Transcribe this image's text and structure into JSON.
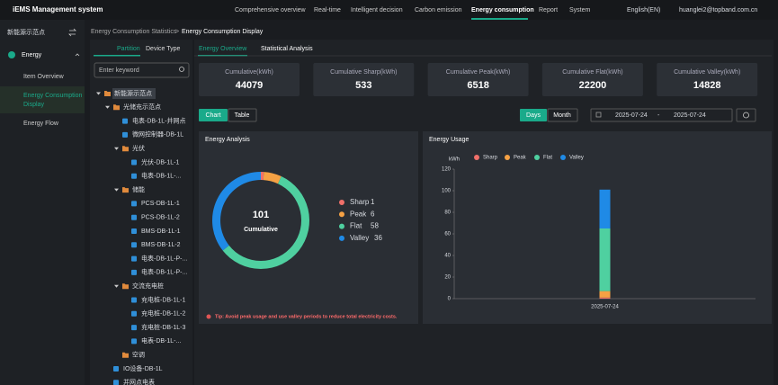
{
  "header": {
    "title": "iEMS Management system",
    "nav": [
      "Comprehensive overview",
      "Real-time",
      "Intelligent decision",
      "Carbon emission",
      "Energy consumption",
      "Report",
      "System"
    ],
    "language": "English(EN)",
    "user": "huanglei2@topband.com.cn"
  },
  "sidebar": {
    "site": "新能源示范点",
    "menu": "Energy",
    "items": [
      "Item Overview",
      "Energy Consumption Display",
      "Energy Flow"
    ]
  },
  "breadcrumb": {
    "parent": "Energy Consumption Statistics",
    "separator": ">",
    "current": "Energy Consumption Display"
  },
  "tree": {
    "tabs": [
      "Partition",
      "Device Type"
    ],
    "search_placeholder": "Enter keyword",
    "nodes": [
      {
        "label": "新能源示范点",
        "children": [
          {
            "label": "光储充示范点",
            "children": [
              {
                "label": "电表-DB-1L-并网点"
              },
              {
                "label": "微网控制器-DB-1L"
              },
              {
                "label": "光伏",
                "children": [
                  {
                    "label": "光伏-DB-1L-1"
                  },
                  {
                    "label": "电表-DB-1L-..."
                  }
                ]
              },
              {
                "label": "储能",
                "children": [
                  {
                    "label": "PCS-DB-1L-1"
                  },
                  {
                    "label": "PCS-DB-1L-2"
                  },
                  {
                    "label": "BMS-DB-1L-1"
                  },
                  {
                    "label": "BMS-DB-1L-2"
                  },
                  {
                    "label": "电表-DB-1L-P-..."
                  },
                  {
                    "label": "电表-DB-1L-P-..."
                  }
                ]
              },
              {
                "label": "交流充电桩",
                "children": [
                  {
                    "label": "充电桩-DB-1L-1"
                  },
                  {
                    "label": "充电桩-DB-1L-2"
                  },
                  {
                    "label": "充电桩-DB-1L-3"
                  },
                  {
                    "label": "电表-DB-1L-..."
                  }
                ]
              },
              {
                "label": "空调",
                "children": []
              }
            ]
          },
          {
            "label": "IO设备-DB-1L"
          },
          {
            "label": "并网点电表"
          }
        ]
      }
    ]
  },
  "tabs": [
    "Energy Overview",
    "Statistical Analysis"
  ],
  "cards": [
    {
      "label": "Cumulative(kWh)",
      "value": 44079
    },
    {
      "label": "Cumulative Sharp(kWh)",
      "value": 533
    },
    {
      "label": "Cumulative Peak(kWh)",
      "value": 6518
    },
    {
      "label": "Cumulative Flat(kWh)",
      "value": 22200
    },
    {
      "label": "Cumulative Valley(kWh)",
      "value": 14828
    }
  ],
  "view_toggle": [
    "Chart",
    "Table"
  ],
  "period_toggle": [
    "Days",
    "Month"
  ],
  "date_range": {
    "start": "2025-07-24",
    "separator": "-",
    "end": "2025-07-24"
  },
  "chart_data": [
    {
      "type": "donut",
      "title": "Energy Analysis",
      "center_value": 101,
      "center_label": "Cumulative",
      "categories": [
        "Sharp",
        "Peak",
        "Flat",
        "Valley"
      ],
      "values": [
        1,
        6,
        58,
        36
      ],
      "colors": [
        "#f0706a",
        "#f5a144",
        "#4fd0a0",
        "#1f8ae6"
      ],
      "annotation": "Tip: Avoid peak usage and use valley periods to reduce total electricity costs."
    },
    {
      "type": "bar",
      "stacked": true,
      "title": "Energy Usage",
      "y_label": "kWh",
      "categories": [
        "2025-07-24"
      ],
      "series": [
        {
          "name": "Sharp",
          "color": "#f0706a",
          "values": [
            1
          ]
        },
        {
          "name": "Peak",
          "color": "#f5a144",
          "values": [
            6
          ]
        },
        {
          "name": "Flat",
          "color": "#4fd0a0",
          "values": [
            58
          ]
        },
        {
          "name": "Valley",
          "color": "#1f8ae6",
          "values": [
            36
          ]
        }
      ],
      "ylim": [
        0,
        120
      ],
      "yticks": [
        0,
        20,
        40,
        60,
        80,
        100,
        120
      ],
      "grid": false
    }
  ]
}
